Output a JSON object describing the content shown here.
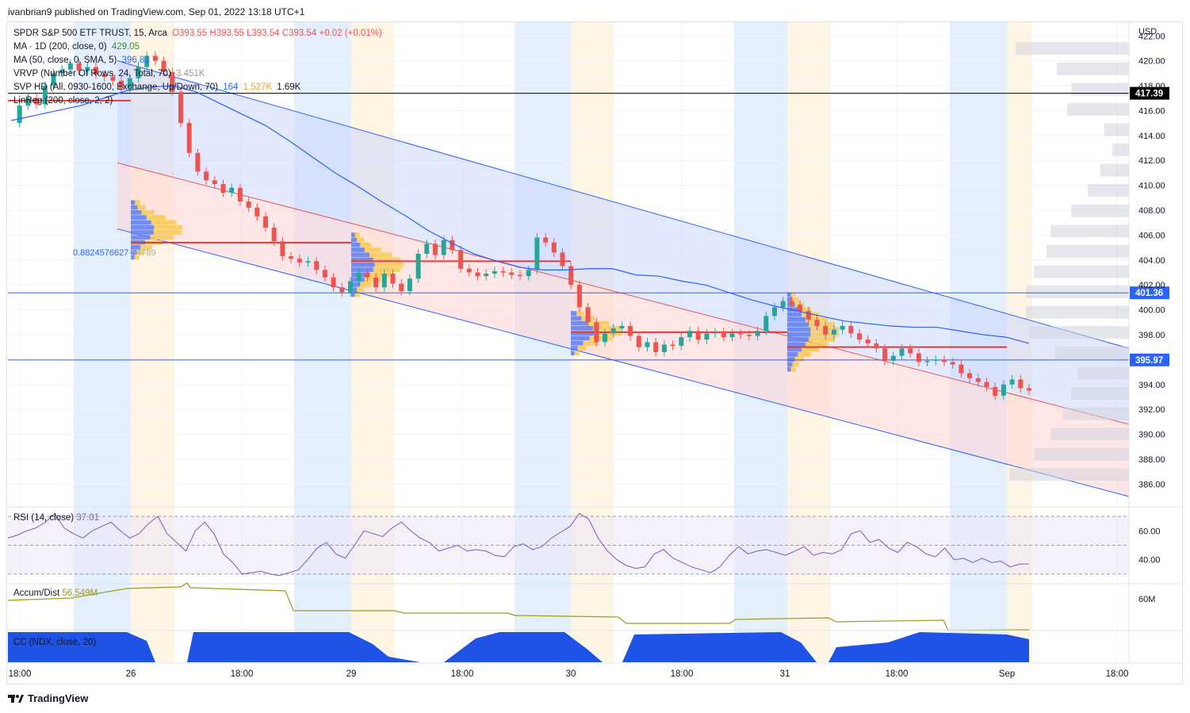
{
  "publisher_line": "ivanbrian9 published on TradingView.com, Sep 01, 2022 13:18 UTC+1",
  "footer_brand": "TradingView",
  "currency": "USD",
  "legend": {
    "symbol": "SPDR S&P 500 ETF TRUST, 15, Arca",
    "ohlc": "O393.55 H393.55 L393.54 C393.54 +0.02 (+0.01%)",
    "ma1_label": "MA · 1D (200, close, 0)",
    "ma1_value": "429.05",
    "ma2_label": "MA (50, close, 0, SMA, 5)",
    "ma2_value": "396.81",
    "vrvp_label": "VRVP (Number Of Rows, 24, Total, 70)",
    "vrvp_value": "3.451K",
    "svp_label": "SVP HD (All, 0930-1600, Exchange, Up/Down, 70)",
    "svp_values": [
      "164",
      "1.527K",
      "1.69K"
    ],
    "linreg_label": "LinReg (200, close, 2, 2)"
  },
  "fib_label": "0.8824576627",
  "fib_value": "-54789",
  "panes": {
    "rsi_label": "RSI (14, close)",
    "rsi_value": "37.01",
    "accum_label": "Accum/Dist",
    "accum_value": "56.549M",
    "cc_label": "CC (NDX, close, 20)"
  },
  "colors": {
    "up": "#26a69a",
    "down": "#ef5350",
    "channel_blue": "#2962ff",
    "poc_red": "#e53935",
    "vp_blue": "#5b7cf7",
    "vp_orange": "#f7c948",
    "rsi_line": "#7e57c2",
    "accum_line": "#9c9c1f",
    "cc_fill": "#1e53e5"
  },
  "chart_data": {
    "type": "candlestick",
    "price_axis": {
      "ylim": [
        384.3,
        423.1
      ],
      "ticks": [
        "422.00",
        "420.00",
        "418.00",
        "416.00",
        "414.00",
        "412.00",
        "410.00",
        "408.00",
        "406.00",
        "404.00",
        "402.00",
        "400.00",
        "398.00",
        "396.00",
        "394.00",
        "392.00",
        "390.00",
        "388.00",
        "386.00"
      ]
    },
    "price_labels": [
      {
        "value": 417.39,
        "text": "417.39",
        "line_color": "#000000",
        "bg": "#000000"
      },
      {
        "value": 401.36,
        "text": "401.36",
        "line_color": "#2962ff",
        "bg": "#2962ff"
      },
      {
        "value": 395.97,
        "text": "395.97",
        "line_color": "#2962ff",
        "bg": "#2962ff"
      }
    ],
    "time_axis": [
      "18:00",
      "26",
      "18:00",
      "29",
      "18:00",
      "30",
      "18:00",
      "31",
      "18:00",
      "Sep",
      "18:00"
    ],
    "close_path": [
      415.0,
      416.4,
      417.0,
      416.5,
      418.0,
      419.0,
      419.3,
      419.8,
      419.2,
      419.5,
      418.9,
      418.7,
      418.4,
      417.8,
      418.6,
      419.5,
      420.4,
      420.0,
      419.1,
      417.5,
      415.0,
      412.6,
      411.1,
      410.4,
      410.1,
      409.4,
      409.8,
      408.7,
      408.2,
      407.5,
      406.6,
      405.5,
      404.3,
      404.1,
      403.8,
      403.9,
      403.2,
      402.6,
      401.8,
      401.4,
      402.3,
      403.0,
      402.6,
      401.8,
      402.9,
      402.1,
      401.5,
      402.5,
      404.5,
      405.3,
      404.4,
      405.6,
      404.8,
      403.3,
      403.0,
      402.7,
      402.9,
      403.1,
      403.0,
      402.8,
      402.7,
      403.2,
      405.8,
      405.4,
      404.6,
      403.5,
      402.0,
      400.2,
      399.0,
      397.4,
      398.1,
      398.5,
      398.7,
      397.9,
      397.0,
      397.4,
      396.6,
      397.2,
      397.1,
      397.8,
      398.3,
      397.6,
      398.1,
      398.2,
      397.8,
      398.1,
      398.0,
      397.9,
      398.3,
      399.5,
      400.2,
      400.7,
      400.4,
      399.9,
      399.2,
      398.7,
      398.0,
      398.4,
      398.7,
      398.1,
      397.6,
      397.3,
      396.9,
      395.9,
      396.3,
      396.9,
      396.5,
      395.8,
      395.9,
      396.0,
      395.8,
      395.6,
      394.9,
      394.5,
      394.2,
      393.8,
      393.1,
      394.0,
      394.4,
      393.7,
      393.5
    ],
    "channel": {
      "upper_start": 420.0,
      "upper_end": 396.9,
      "mid_start": 411.8,
      "mid_end": 390.8,
      "lower_start": 406.5,
      "lower_end": 385.0
    },
    "ma50_path": [
      415.2,
      415.6,
      416.0,
      416.4,
      417.0,
      417.6,
      417.9,
      418.0,
      417.5,
      416.6,
      415.7,
      414.8,
      413.6,
      412.3,
      411.0,
      409.9,
      408.7,
      407.6,
      406.4,
      405.4,
      404.5,
      403.9,
      403.4,
      403.2,
      403.2,
      403.3,
      403.3,
      402.8,
      402.7,
      402.3,
      402.0,
      401.4,
      400.8,
      400.3,
      399.9,
      399.5,
      399.1,
      398.9,
      398.7,
      398.6,
      398.6,
      398.3,
      398.0,
      397.8,
      397.3
    ],
    "rsi": {
      "levels": [
        70,
        50,
        30
      ],
      "ticks": [
        "60.00",
        "40.00"
      ],
      "path": [
        55,
        57,
        60,
        62,
        66,
        72,
        62,
        58,
        55,
        60,
        63,
        66,
        60,
        55,
        58,
        65,
        70,
        58,
        52,
        46,
        60,
        66,
        58,
        44,
        38,
        30,
        31,
        32,
        30,
        29,
        31,
        33,
        40,
        48,
        52,
        44,
        41,
        50,
        60,
        58,
        56,
        62,
        66,
        60,
        55,
        52,
        46,
        48,
        50,
        46,
        47,
        46,
        43,
        42,
        49,
        51,
        47,
        49,
        55,
        59,
        63,
        72,
        68,
        55,
        46,
        40,
        36,
        34,
        35,
        44,
        47,
        41,
        38,
        35,
        33,
        31,
        35,
        43,
        49,
        44,
        46,
        47,
        45,
        43,
        46,
        49,
        43,
        45,
        44,
        47,
        58,
        60,
        52,
        54,
        48,
        45,
        52,
        49,
        44,
        42,
        48,
        40,
        41,
        38,
        41,
        38,
        39,
        35,
        37,
        37
      ]
    },
    "accum_dist": {
      "tick": "60M"
    }
  }
}
